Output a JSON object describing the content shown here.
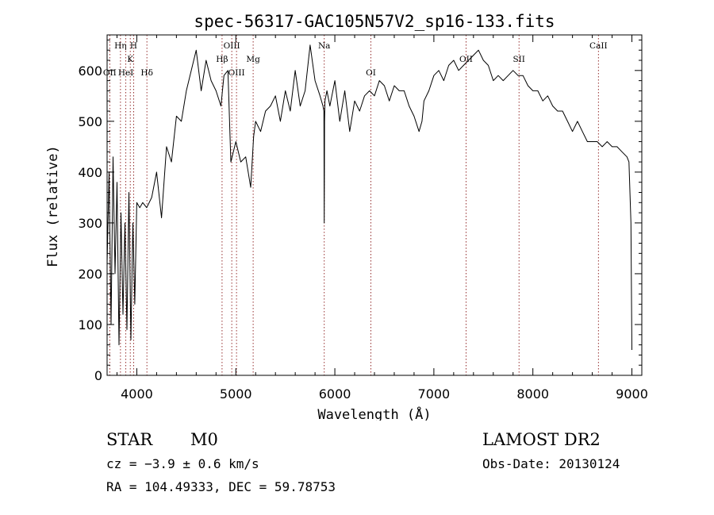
{
  "chart_data": {
    "type": "line",
    "title": "spec-56317-GAC105N57V2_sp16-133.fits",
    "xlabel": "Wavelength (Å)",
    "ylabel": "Flux (relative)",
    "xlim": [
      3700,
      9100
    ],
    "ylim": [
      0,
      670
    ],
    "xticks": [
      4000,
      5000,
      6000,
      7000,
      8000,
      9000
    ],
    "yticks": [
      0,
      100,
      200,
      300,
      400,
      500,
      600
    ],
    "grid": false,
    "series": [
      {
        "x": [
          3700,
          3720,
          3740,
          3760,
          3780,
          3800,
          3820,
          3840,
          3860,
          3880,
          3900,
          3920,
          3940,
          3960,
          3980,
          4000,
          4030,
          4060,
          4100,
          4150,
          4200,
          4250,
          4300,
          4350,
          4400,
          4450,
          4500,
          4550,
          4600,
          4650,
          4700,
          4750,
          4800,
          4850,
          4880,
          4920,
          4950,
          5000,
          5050,
          5100,
          5150,
          5180,
          5200,
          5250,
          5300,
          5350,
          5400,
          5450,
          5500,
          5550,
          5600,
          5650,
          5700,
          5750,
          5800,
          5850,
          5880,
          5890,
          5893,
          5896,
          5900,
          5920,
          5950,
          6000,
          6050,
          6100,
          6150,
          6200,
          6250,
          6300,
          6350,
          6400,
          6450,
          6500,
          6550,
          6600,
          6650,
          6700,
          6750,
          6800,
          6850,
          6880,
          6900,
          6950,
          7000,
          7050,
          7100,
          7150,
          7200,
          7250,
          7300,
          7350,
          7400,
          7450,
          7500,
          7550,
          7600,
          7650,
          7700,
          7750,
          7800,
          7850,
          7900,
          7950,
          8000,
          8050,
          8100,
          8150,
          8200,
          8250,
          8300,
          8350,
          8400,
          8450,
          8500,
          8550,
          8600,
          8650,
          8700,
          8750,
          8800,
          8850,
          8900,
          8950,
          8970,
          8990,
          9000
        ],
        "y": [
          220,
          400,
          100,
          430,
          200,
          380,
          60,
          320,
          120,
          300,
          90,
          360,
          70,
          300,
          140,
          340,
          330,
          340,
          330,
          350,
          400,
          310,
          450,
          420,
          510,
          500,
          560,
          600,
          640,
          560,
          620,
          580,
          560,
          530,
          590,
          600,
          420,
          460,
          420,
          430,
          370,
          470,
          500,
          480,
          520,
          530,
          550,
          500,
          560,
          520,
          600,
          530,
          560,
          650,
          580,
          550,
          530,
          520,
          300,
          500,
          540,
          560,
          530,
          580,
          500,
          560,
          480,
          540,
          520,
          550,
          560,
          550,
          580,
          570,
          540,
          570,
          560,
          560,
          530,
          510,
          480,
          500,
          540,
          560,
          590,
          600,
          580,
          610,
          620,
          600,
          610,
          620,
          630,
          640,
          620,
          610,
          580,
          590,
          580,
          590,
          600,
          590,
          590,
          570,
          560,
          560,
          540,
          550,
          530,
          520,
          520,
          500,
          480,
          500,
          480,
          460,
          460,
          460,
          450,
          460,
          450,
          450,
          440,
          430,
          420,
          300,
          50
        ]
      }
    ],
    "line_markers": [
      {
        "label": "Hη",
        "x": 3835,
        "row": 0
      },
      {
        "label": "H",
        "x": 3968,
        "row": 0
      },
      {
        "label": "OII",
        "x": 3727,
        "row": 2
      },
      {
        "label": "HeI",
        "x": 3889,
        "row": 2
      },
      {
        "label": "K",
        "x": 3934,
        "row": 1
      },
      {
        "label": "Hδ",
        "x": 4102,
        "row": 2
      },
      {
        "label": "OIII",
        "x": 4959,
        "row": 0
      },
      {
        "label": "Hβ",
        "x": 4861,
        "row": 1
      },
      {
        "label": "OIII",
        "x": 5007,
        "row": 2
      },
      {
        "label": "Mg",
        "x": 5175,
        "row": 1
      },
      {
        "label": "Na",
        "x": 5893,
        "row": 0
      },
      {
        "label": "OI",
        "x": 6364,
        "row": 2
      },
      {
        "label": "OII",
        "x": 7325,
        "row": 1
      },
      {
        "label": "SII",
        "x": 7860,
        "row": 1
      },
      {
        "label": "CaII",
        "x": 8662,
        "row": 0
      }
    ]
  },
  "info": {
    "class_label": "STAR",
    "subclass": "M0",
    "survey": "LAMOST DR2",
    "cz": "cz = −3.9 ± 0.6 km/s",
    "obs_date": "Obs-Date: 20130124",
    "coords": "RA = 104.49333, DEC =  59.78753"
  },
  "colors": {
    "spectrum": "#000000",
    "line_markers": "#8b1a1a",
    "axes": "#000000",
    "background": "#ffffff"
  }
}
